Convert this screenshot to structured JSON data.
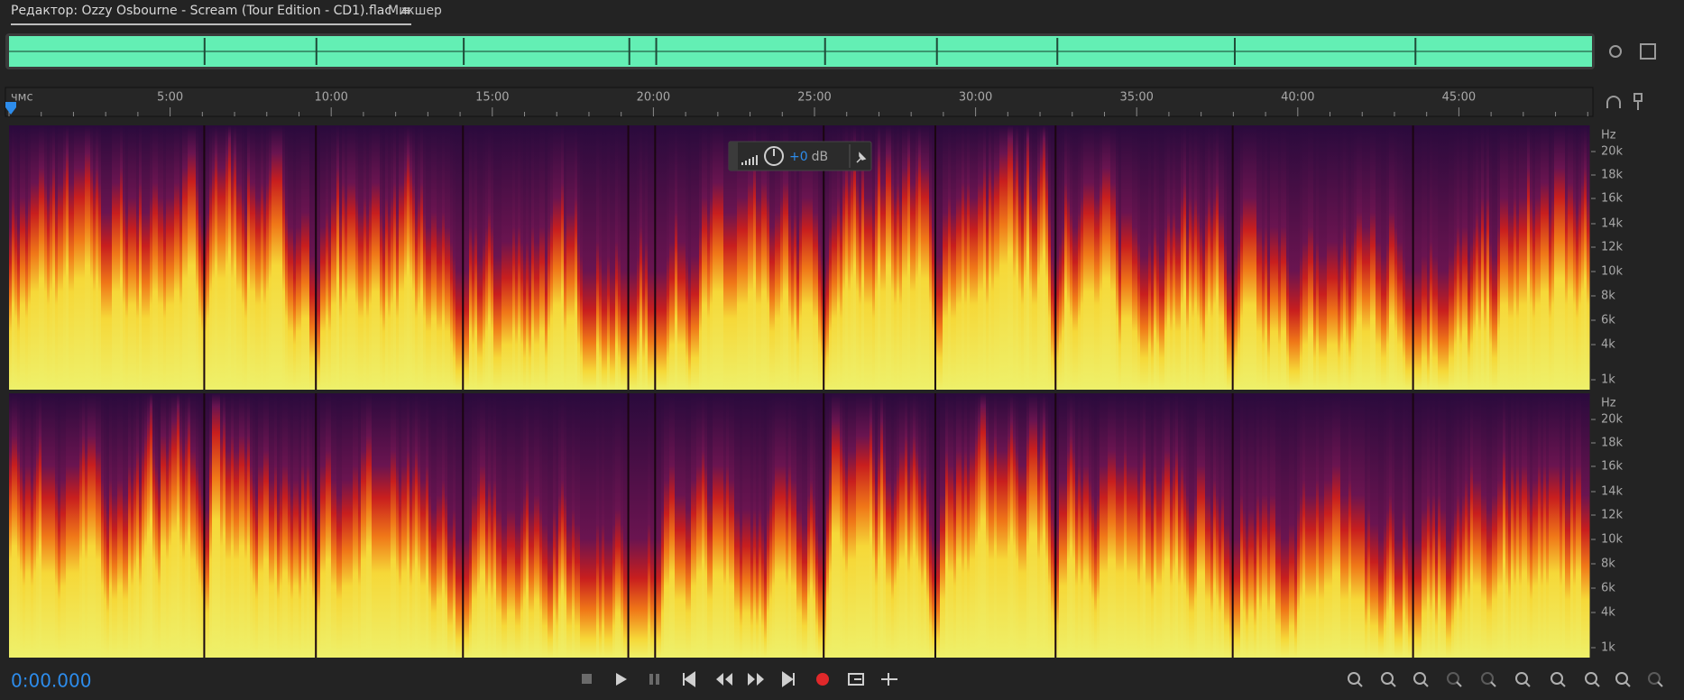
{
  "tabs": [
    "Редактор: Ozzy Osbourne - Scream (Tour Edition - CD1).flac",
    "Микшер"
  ],
  "ruler": {
    "labels": [
      "чмс",
      "5:00",
      "10:00",
      "15:00",
      "20:00",
      "25:00",
      "30:00",
      "35:00",
      "40:00",
      "45:00"
    ]
  },
  "channels": [
    {
      "unit": "Hz",
      "labels": [
        "20k",
        "18k",
        "16k",
        "14k",
        "12k",
        "10k",
        "8k",
        "6k",
        "4k",
        "1k"
      ]
    },
    {
      "unit": "Hz",
      "labels": [
        "20k",
        "18k",
        "16k",
        "14k",
        "12k",
        "10k",
        "8k",
        "6k",
        "4k",
        "1k"
      ]
    }
  ],
  "hud": {
    "gain": "+0",
    "unit": "dB"
  },
  "transport": {
    "time": "0:00.000"
  }
}
